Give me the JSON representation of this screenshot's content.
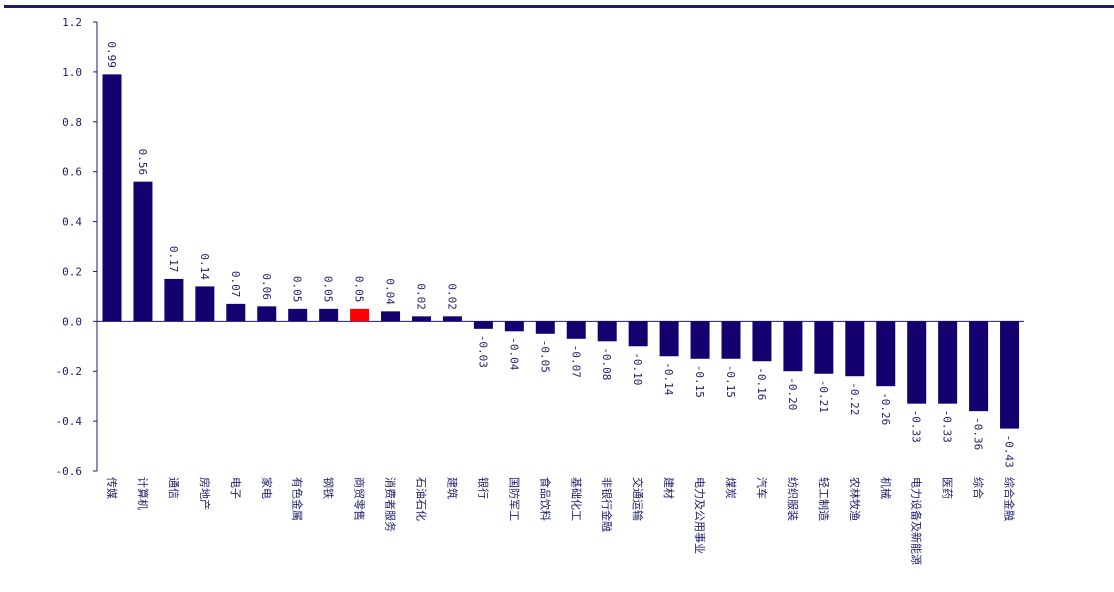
{
  "chart_data": {
    "type": "bar",
    "title": "",
    "xlabel": "",
    "ylabel": "",
    "ylim": [
      -0.6,
      1.2
    ],
    "yticks": [
      "1.2",
      "1.0",
      "0.8",
      "0.6",
      "0.4",
      "0.2",
      "0.0",
      "-0.2",
      "-0.4",
      "-0.6"
    ],
    "grid": false,
    "legend": "none",
    "categories": [
      "传媒",
      "计算机",
      "通信",
      "房地产",
      "电子",
      "家电",
      "有色金属",
      "钢铁",
      "商贸零售",
      "消费者服务",
      "石油石化",
      "建筑",
      "银行",
      "国防军工",
      "食品饮料",
      "基础化工",
      "非银行金融",
      "交通运输",
      "建材",
      "电力及公用事业",
      "煤炭",
      "汽车",
      "纺织服装",
      "轻工制造",
      "农林牧渔",
      "机械",
      "电力设备及新能源",
      "医药",
      "综合",
      "综合金融"
    ],
    "values": [
      0.99,
      0.56,
      0.17,
      0.14,
      0.07,
      0.06,
      0.05,
      0.05,
      0.05,
      0.04,
      0.02,
      0.02,
      -0.03,
      -0.04,
      -0.05,
      -0.07,
      -0.08,
      -0.1,
      -0.14,
      -0.15,
      -0.15,
      -0.16,
      -0.2,
      -0.21,
      -0.22,
      -0.26,
      -0.33,
      -0.33,
      -0.36,
      -0.43
    ],
    "value_labels": [
      "0.99",
      "0.56",
      "0.17",
      "0.14",
      "0.07",
      "0.06",
      "0.05",
      "0.05",
      "0.05",
      "0.04",
      "0.02",
      "0.02",
      "-0.03",
      "-0.04",
      "-0.05",
      "-0.07",
      "-0.08",
      "-0.10",
      "-0.14",
      "-0.15",
      "-0.15",
      "-0.16",
      "-0.20",
      "-0.21",
      "-0.22",
      "-0.26",
      "-0.33",
      "-0.33",
      "-0.36",
      "-0.43"
    ],
    "highlight_index": 8,
    "colors": {
      "bar": "#14006e",
      "highlight": "#ff0000",
      "axis": "#1d1d6b",
      "text": "#1d1d6b",
      "top_rule": "#1d1d6b"
    }
  }
}
